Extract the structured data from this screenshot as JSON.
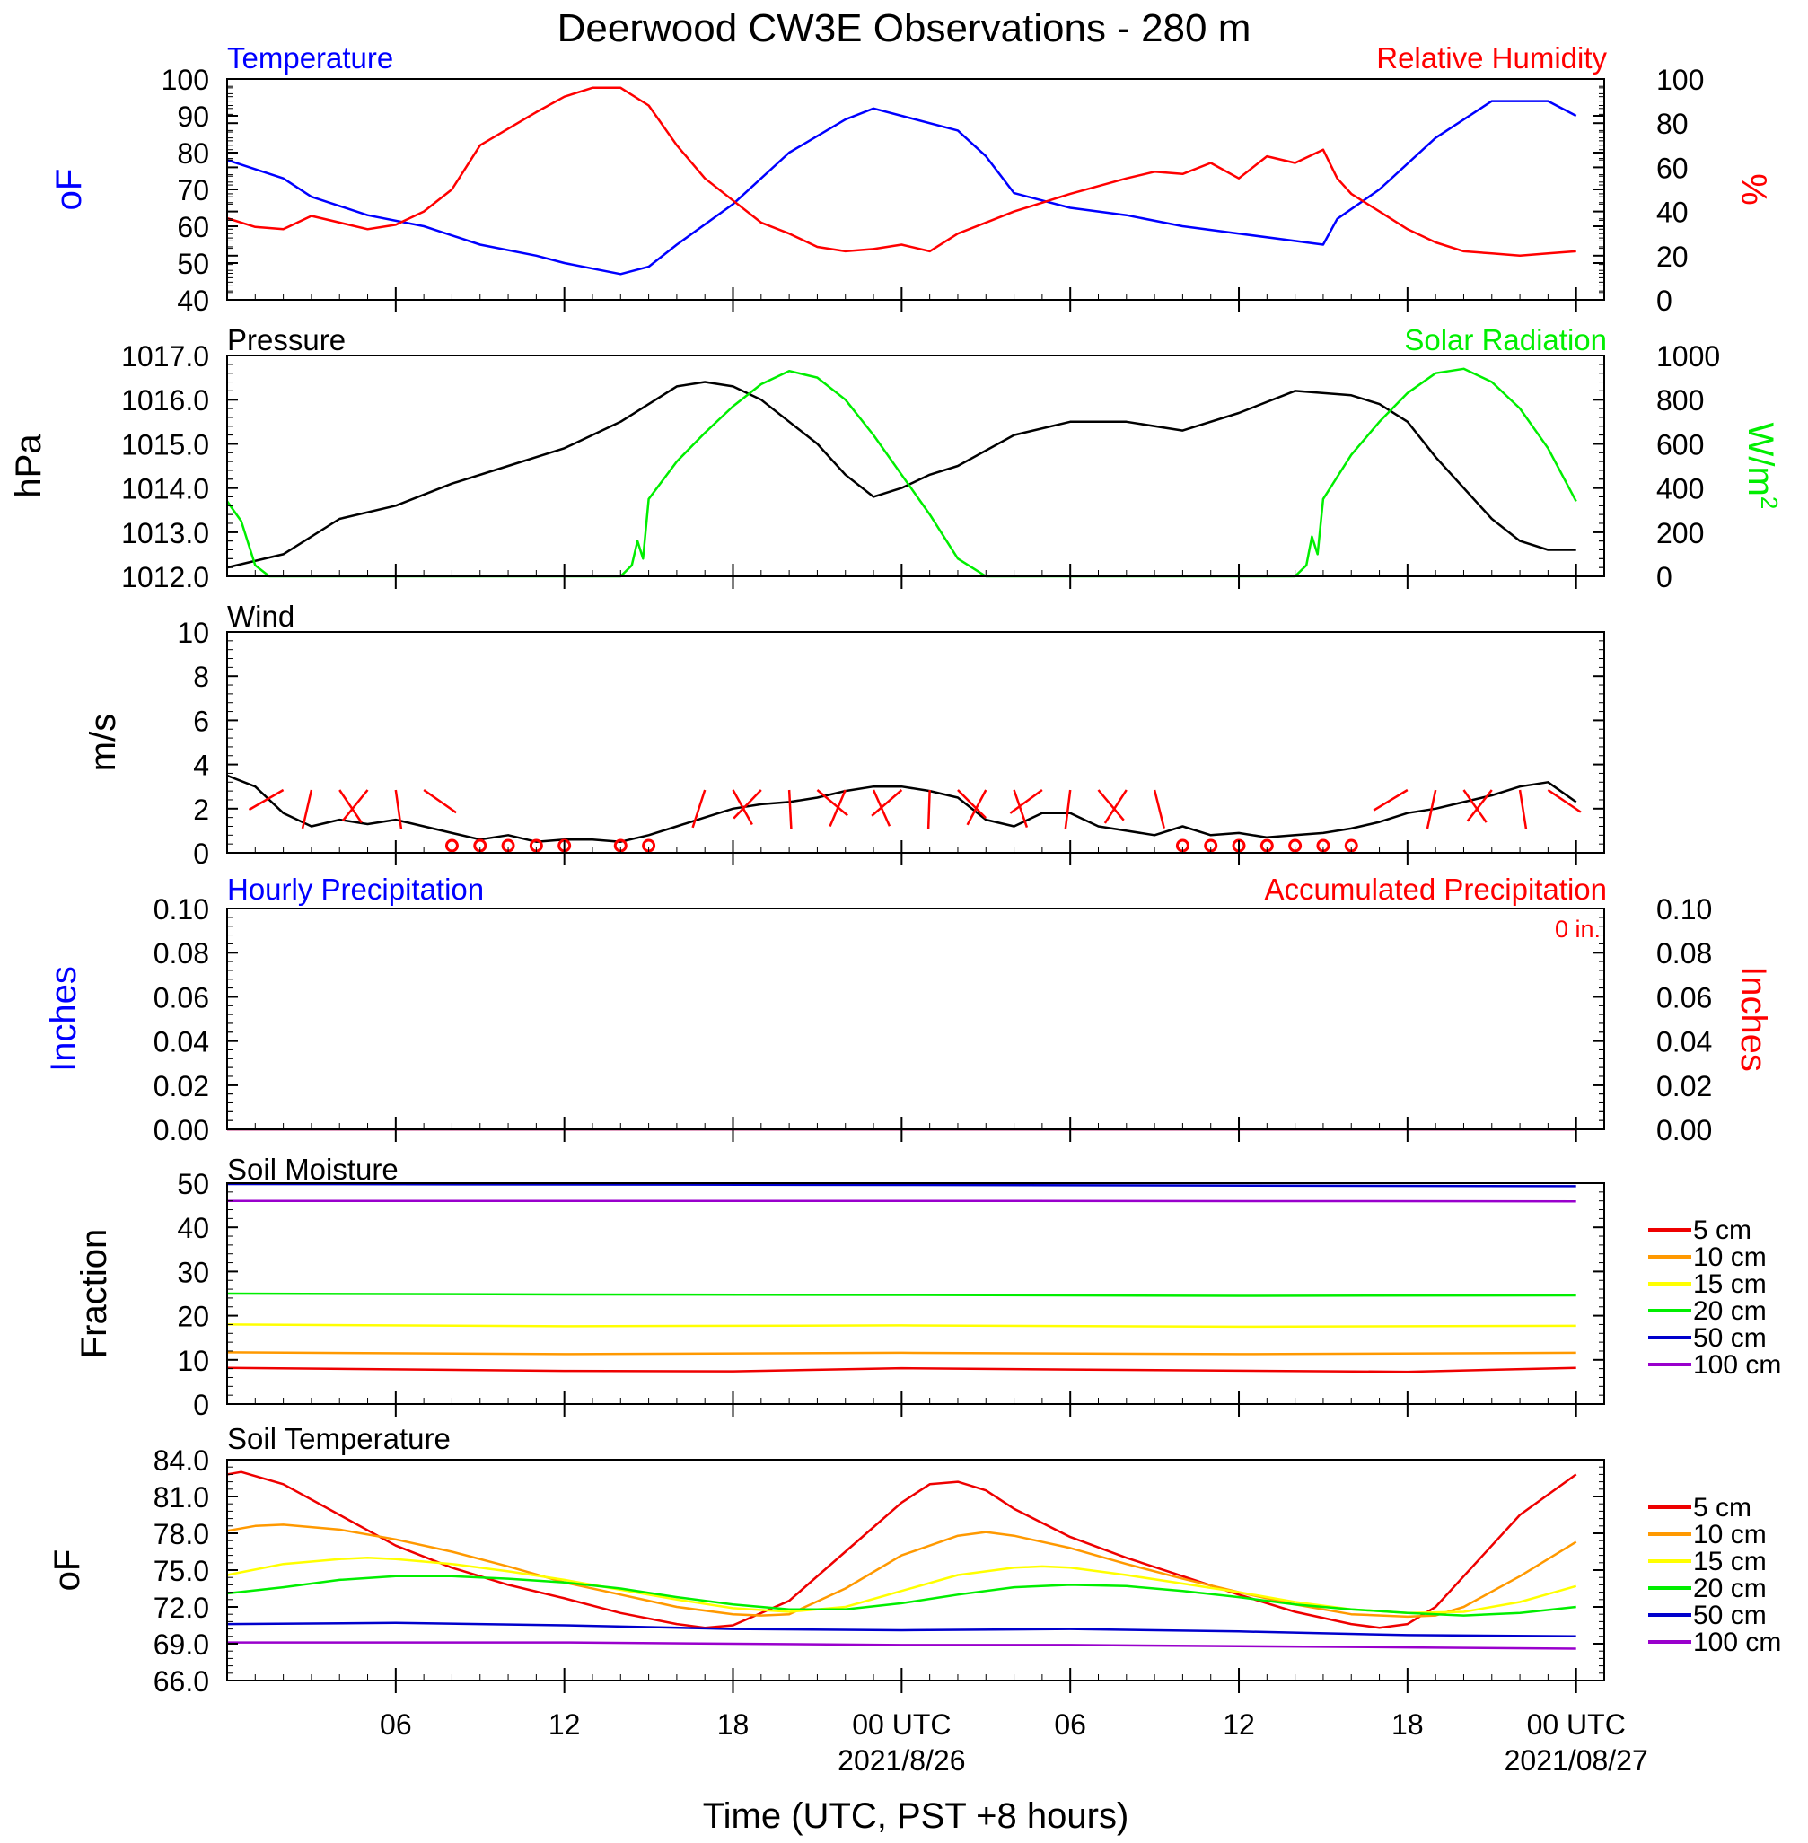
{
  "title": "Deerwood CW3E Observations - 280 m",
  "xaxis": {
    "label": "Time (UTC, PST +8 hours)",
    "ticks": [
      {
        "hour": 6,
        "label": "06",
        "sub": ""
      },
      {
        "hour": 12,
        "label": "12",
        "sub": ""
      },
      {
        "hour": 18,
        "label": "18",
        "sub": ""
      },
      {
        "hour": 24,
        "label": "00 UTC",
        "sub": "2021/8/26"
      },
      {
        "hour": 30,
        "label": "06",
        "sub": ""
      },
      {
        "hour": 36,
        "label": "12",
        "sub": ""
      },
      {
        "hour": 42,
        "label": "18",
        "sub": ""
      },
      {
        "hour": 48,
        "label": "00 UTC",
        "sub": "2021/08/27"
      }
    ]
  },
  "colors": {
    "temperature": "#0000ff",
    "humidity": "#ff0000",
    "pressure": "#000000",
    "solar": "#00ee00",
    "wind": "#000000",
    "barb": "#ff0000"
  },
  "panels": {
    "temp": {
      "left_title": "Temperature",
      "right_title": "Relative Humidity",
      "left_unit": "oF",
      "right_unit": "%",
      "left_ticks": [
        "100",
        "90",
        "80",
        "70",
        "60",
        "50",
        "40"
      ],
      "right_ticks": [
        "100",
        "80",
        "60",
        "40",
        "20",
        "0"
      ]
    },
    "pressure": {
      "left_title": "Pressure",
      "right_title": "Solar Radiation",
      "left_unit": "hPa",
      "right_unit": "W/m2",
      "left_ticks": [
        "1017.0",
        "1016.0",
        "1015.0",
        "1014.0",
        "1013.0",
        "1012.0"
      ],
      "right_ticks": [
        "1000",
        "800",
        "600",
        "400",
        "200",
        "0"
      ]
    },
    "wind": {
      "left_title": "Wind",
      "left_unit": "m/s",
      "left_ticks": [
        "10",
        "8",
        "6",
        "4",
        "2",
        "0"
      ]
    },
    "precip": {
      "left_title": "Hourly Precipitation",
      "right_title": "Accumulated Precipitation",
      "total": "0 in.",
      "left_unit": "Inches",
      "right_unit": "Inches",
      "left_ticks": [
        "0.10",
        "0.08",
        "0.06",
        "0.04",
        "0.02",
        "0.00"
      ],
      "right_ticks": [
        "0.10",
        "0.08",
        "0.06",
        "0.04",
        "0.02",
        "0.00"
      ]
    },
    "soil_moisture": {
      "left_title": "Soil Moisture",
      "left_unit": "Fraction",
      "left_ticks": [
        "50",
        "40",
        "30",
        "20",
        "10",
        "0"
      ]
    },
    "soil_temp": {
      "left_title": "Soil Temperature",
      "left_unit": "oF",
      "left_ticks": [
        "84.0",
        "81.0",
        "78.0",
        "75.0",
        "72.0",
        "69.0",
        "66.0"
      ]
    }
  },
  "legend_depths": [
    {
      "label": "5 cm",
      "color": "#ee0000"
    },
    {
      "label": "10 cm",
      "color": "#ff9900"
    },
    {
      "label": "15 cm",
      "color": "#ffff00"
    },
    {
      "label": "20 cm",
      "color": "#00ee00"
    },
    {
      "label": "50 cm",
      "color": "#0000cc"
    },
    {
      "label": "100 cm",
      "color": "#9900cc"
    }
  ],
  "chart_data": [
    {
      "type": "line",
      "panel": "temp",
      "x_unit": "hours since 2021-08-25 00 UTC",
      "ylim": [
        40,
        100
      ],
      "y2lim": [
        0,
        100
      ],
      "series": [
        {
          "name": "Temperature",
          "axis": "left",
          "color": "#0000ff",
          "x": [
            0,
            2,
            3,
            5,
            7,
            9,
            11,
            12,
            14,
            15,
            16,
            18,
            20,
            22,
            23,
            24,
            26,
            27,
            28,
            30,
            32,
            34,
            36,
            38,
            39,
            39.5,
            41,
            43,
            45,
            47,
            48
          ],
          "y": [
            78,
            73,
            68,
            63,
            60,
            55,
            52,
            50,
            47,
            49,
            55,
            66,
            80,
            89,
            92,
            90,
            86,
            79,
            69,
            65,
            63,
            60,
            58,
            56,
            55,
            62,
            70,
            84,
            94,
            94,
            90
          ]
        },
        {
          "name": "Relative Humidity",
          "axis": "right",
          "color": "#ff0000",
          "x": [
            0,
            1,
            2,
            3,
            4,
            5,
            6,
            7,
            8,
            9,
            11,
            12,
            13,
            14,
            15,
            16,
            17,
            18,
            19,
            20,
            21,
            22,
            23,
            24,
            25,
            26,
            27,
            28,
            30,
            32,
            33,
            34,
            35,
            36,
            37,
            38,
            39,
            39.5,
            40,
            41,
            42,
            43,
            44,
            45,
            46,
            47,
            48
          ],
          "y": [
            37,
            33,
            32,
            38,
            35,
            32,
            34,
            40,
            50,
            70,
            85,
            92,
            96,
            96,
            88,
            70,
            55,
            45,
            35,
            30,
            24,
            22,
            23,
            25,
            22,
            30,
            35,
            40,
            48,
            55,
            58,
            57,
            62,
            55,
            65,
            62,
            68,
            55,
            48,
            40,
            32,
            26,
            22,
            21,
            20,
            21,
            22
          ]
        }
      ]
    },
    {
      "type": "line",
      "panel": "pressure",
      "x_unit": "hours since 2021-08-25 00 UTC",
      "ylim": [
        1012,
        1017
      ],
      "y2lim": [
        0,
        1000
      ],
      "series": [
        {
          "name": "Pressure",
          "axis": "left",
          "color": "#000000",
          "x": [
            0,
            2,
            4,
            6,
            8,
            10,
            12,
            14,
            16,
            17,
            18,
            19,
            20,
            21,
            22,
            23,
            24,
            25,
            26,
            28,
            30,
            32,
            34,
            36,
            38,
            40,
            41,
            42,
            43,
            44,
            45,
            46,
            47,
            48
          ],
          "y": [
            1012.2,
            1012.5,
            1013.3,
            1013.6,
            1014.1,
            1014.5,
            1014.9,
            1015.5,
            1016.3,
            1016.4,
            1016.3,
            1016.0,
            1015.5,
            1015.0,
            1014.3,
            1013.8,
            1014.0,
            1014.3,
            1014.5,
            1015.2,
            1015.5,
            1015.5,
            1015.3,
            1015.7,
            1016.2,
            1016.1,
            1015.9,
            1015.5,
            1014.7,
            1014.0,
            1013.3,
            1012.8,
            1012.6,
            1012.6
          ]
        },
        {
          "name": "Solar Radiation",
          "axis": "right",
          "color": "#00ee00",
          "x": [
            0,
            0.5,
            1,
            1.5,
            14,
            14.4,
            14.6,
            14.8,
            15,
            16,
            17,
            18,
            19,
            20,
            21,
            22,
            23,
            24,
            25,
            26,
            27,
            28,
            38,
            38.4,
            38.6,
            38.8,
            39,
            40,
            41,
            42,
            43,
            44,
            45,
            46,
            47,
            48
          ],
          "y": [
            340,
            250,
            50,
            0,
            0,
            50,
            160,
            80,
            350,
            520,
            650,
            770,
            870,
            930,
            900,
            800,
            640,
            460,
            280,
            80,
            0,
            0,
            0,
            50,
            180,
            100,
            350,
            550,
            700,
            830,
            920,
            940,
            880,
            760,
            580,
            340
          ]
        }
      ]
    },
    {
      "type": "line",
      "panel": "wind",
      "x_unit": "hours since 2021-08-25 00 UTC",
      "ylim": [
        0,
        10
      ],
      "series": [
        {
          "name": "Wind",
          "color": "#000000",
          "x": [
            0,
            1,
            2,
            3,
            4,
            5,
            6,
            7,
            8,
            9,
            10,
            11,
            12,
            13,
            14,
            15,
            16,
            17,
            18,
            19,
            20,
            21,
            22,
            23,
            24,
            25,
            26,
            27,
            28,
            29,
            30,
            31,
            32,
            33,
            34,
            35,
            36,
            37,
            38,
            39,
            40,
            41,
            42,
            43,
            44,
            45,
            46,
            47,
            48
          ],
          "y": [
            3.5,
            3,
            1.8,
            1.2,
            1.5,
            1.3,
            1.5,
            1.2,
            0.9,
            0.6,
            0.8,
            0.5,
            0.6,
            0.6,
            0.5,
            0.8,
            1.2,
            1.6,
            2,
            2.2,
            2.3,
            2.5,
            2.8,
            3,
            3,
            2.8,
            2.5,
            1.5,
            1.2,
            1.8,
            1.8,
            1.2,
            1,
            0.8,
            1.2,
            0.8,
            0.9,
            0.7,
            0.8,
            0.9,
            1.1,
            1.4,
            1.8,
            2,
            2.3,
            2.6,
            3,
            3.2,
            2.3
          ]
        }
      ],
      "calm_hours": [
        8,
        9,
        10,
        11,
        12,
        14,
        15,
        34,
        35,
        36,
        37,
        38,
        39,
        40
      ],
      "barb_hours": [
        2,
        3,
        4,
        5,
        6,
        7,
        17,
        18,
        19,
        20,
        21,
        22,
        23,
        24,
        25,
        26,
        27,
        28,
        29,
        30,
        31,
        32,
        33,
        42,
        43,
        44,
        45,
        46,
        47
      ]
    },
    {
      "type": "line",
      "panel": "precip",
      "ylim": [
        0,
        0.1
      ],
      "series": [
        {
          "name": "Hourly Precipitation",
          "color": "#0000ff",
          "x": [
            0,
            48
          ],
          "y": [
            0,
            0
          ]
        },
        {
          "name": "Accumulated Precipitation",
          "color": "#ff0000",
          "x": [
            0,
            48
          ],
          "y": [
            0,
            0
          ]
        }
      ]
    },
    {
      "type": "line",
      "panel": "soil_moisture",
      "ylim": [
        0,
        50
      ],
      "series": [
        {
          "name": "5 cm",
          "color": "#ee0000",
          "x": [
            0,
            12,
            18,
            24,
            30,
            42,
            48
          ],
          "y": [
            8.2,
            7.5,
            7.4,
            8.1,
            7.8,
            7.3,
            8.2
          ]
        },
        {
          "name": "10 cm",
          "color": "#ff9900",
          "x": [
            0,
            12,
            24,
            36,
            48
          ],
          "y": [
            11.7,
            11.3,
            11.6,
            11.3,
            11.6
          ]
        },
        {
          "name": "15 cm",
          "color": "#ffff00",
          "x": [
            0,
            12,
            24,
            36,
            48
          ],
          "y": [
            18.0,
            17.6,
            17.8,
            17.5,
            17.7
          ]
        },
        {
          "name": "20 cm",
          "color": "#00ee00",
          "x": [
            0,
            12,
            24,
            36,
            48
          ],
          "y": [
            25.0,
            24.8,
            24.7,
            24.5,
            24.6
          ]
        },
        {
          "name": "50 cm",
          "color": "#0000cc",
          "x": [
            0,
            24,
            48
          ],
          "y": [
            49.8,
            49.6,
            49.3
          ]
        },
        {
          "name": "100 cm",
          "color": "#9900cc",
          "x": [
            0,
            24,
            48
          ],
          "y": [
            46.0,
            46.0,
            45.9
          ]
        }
      ]
    },
    {
      "type": "line",
      "panel": "soil_temp",
      "ylim": [
        66,
        84
      ],
      "series": [
        {
          "name": "5 cm",
          "color": "#ee0000",
          "x": [
            0,
            0.5,
            2,
            4,
            6,
            8,
            10,
            12,
            14,
            16,
            17,
            18,
            20,
            22,
            24,
            25,
            26,
            27,
            28,
            30,
            32,
            34,
            36,
            38,
            40,
            41,
            42,
            43,
            44,
            46,
            48
          ],
          "y": [
            82.8,
            83,
            82,
            79.5,
            77.0,
            75.2,
            73.8,
            72.7,
            71.5,
            70.6,
            70.3,
            70.5,
            72.5,
            76.5,
            80.5,
            82.0,
            82.2,
            81.5,
            80.0,
            77.7,
            76.0,
            74.5,
            73.0,
            71.6,
            70.6,
            70.3,
            70.6,
            72.0,
            74.5,
            79.5,
            82.8
          ]
        },
        {
          "name": "10 cm",
          "color": "#ff9900",
          "x": [
            0,
            1,
            2,
            4,
            6,
            8,
            10,
            12,
            14,
            16,
            18,
            19,
            20,
            22,
            24,
            26,
            27,
            28,
            30,
            32,
            34,
            36,
            38,
            40,
            42,
            43,
            44,
            46,
            48
          ],
          "y": [
            78.2,
            78.6,
            78.7,
            78.3,
            77.5,
            76.5,
            75.3,
            74.0,
            73.0,
            72.0,
            71.4,
            71.3,
            71.4,
            73.5,
            76.2,
            77.8,
            78.1,
            77.8,
            76.8,
            75.5,
            74.3,
            73.2,
            72.2,
            71.4,
            71.2,
            71.3,
            72.0,
            74.5,
            77.3
          ]
        },
        {
          "name": "15 cm",
          "color": "#ffff00",
          "x": [
            0,
            2,
            4,
            5,
            6,
            8,
            10,
            12,
            14,
            16,
            18,
            20,
            22,
            24,
            26,
            28,
            29,
            30,
            32,
            34,
            36,
            38,
            40,
            42,
            44,
            46,
            48
          ],
          "y": [
            74.6,
            75.5,
            75.9,
            76.0,
            75.9,
            75.5,
            74.9,
            74.2,
            73.4,
            72.6,
            71.9,
            71.6,
            72.0,
            73.3,
            74.6,
            75.2,
            75.3,
            75.2,
            74.6,
            73.9,
            73.2,
            72.4,
            71.8,
            71.5,
            71.6,
            72.4,
            73.7
          ]
        },
        {
          "name": "20 cm",
          "color": "#00ee00",
          "x": [
            0,
            2,
            4,
            6,
            8,
            10,
            12,
            14,
            16,
            18,
            20,
            22,
            24,
            26,
            28,
            30,
            32,
            34,
            36,
            38,
            40,
            42,
            44,
            46,
            48
          ],
          "y": [
            73.1,
            73.6,
            74.2,
            74.5,
            74.5,
            74.3,
            74.0,
            73.5,
            72.8,
            72.2,
            71.8,
            71.8,
            72.3,
            73.0,
            73.6,
            73.8,
            73.7,
            73.3,
            72.8,
            72.2,
            71.8,
            71.5,
            71.3,
            71.5,
            72.0
          ]
        },
        {
          "name": "50 cm",
          "color": "#0000cc",
          "x": [
            0,
            6,
            12,
            18,
            24,
            30,
            36,
            42,
            48
          ],
          "y": [
            70.6,
            70.7,
            70.5,
            70.2,
            70.1,
            70.2,
            70.0,
            69.7,
            69.6
          ]
        },
        {
          "name": "100 cm",
          "color": "#9900cc",
          "x": [
            0,
            6,
            12,
            18,
            24,
            30,
            36,
            42,
            48
          ],
          "y": [
            69.1,
            69.1,
            69.1,
            69.0,
            68.9,
            68.9,
            68.8,
            68.7,
            68.6
          ]
        }
      ]
    }
  ]
}
